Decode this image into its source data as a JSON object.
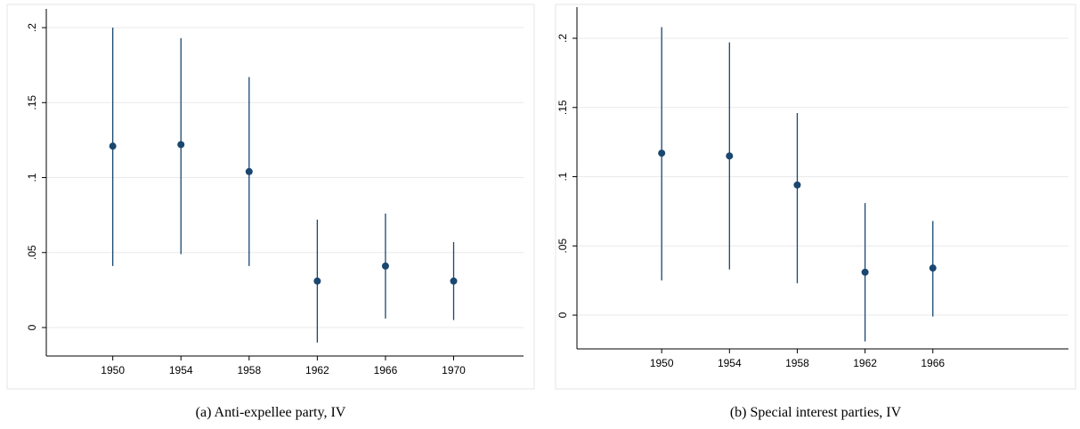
{
  "chart_data": [
    {
      "type": "errorbar",
      "caption": "(a)  Anti-expellee party, IV",
      "color": "#1a476f",
      "x": [
        1950,
        1954,
        1958,
        1962,
        1966,
        1970
      ],
      "values": [
        0.121,
        0.122,
        0.104,
        0.031,
        0.041,
        0.031
      ],
      "lower": [
        0.041,
        0.049,
        0.041,
        -0.01,
        0.006,
        0.005
      ],
      "upper": [
        0.2,
        0.193,
        0.167,
        0.072,
        0.076,
        0.057
      ],
      "xlim": [
        1946.1,
        1974.1
      ],
      "xticks": [
        1950,
        1954,
        1958,
        1962,
        1966,
        1970
      ],
      "ylim": [
        -0.019,
        0.2125
      ],
      "yticks": [
        0,
        {
          "value": 0.05,
          "label": ".05"
        },
        {
          "value": 0.1,
          "label": ".1"
        },
        {
          "value": 0.15,
          "label": ".15"
        },
        {
          "value": 0.2,
          "label": ".2"
        }
      ],
      "grid": true
    },
    {
      "type": "errorbar",
      "caption": "(b)  Special interest parties, IV",
      "color": "#1a476f",
      "x": [
        1950,
        1954,
        1958,
        1962,
        1966
      ],
      "values": [
        0.117,
        0.115,
        0.094,
        0.031,
        0.034
      ],
      "lower": [
        0.025,
        0.033,
        0.023,
        -0.019,
        -0.001
      ],
      "upper": [
        0.208,
        0.197,
        0.146,
        0.081,
        0.068
      ],
      "xlim": [
        1945,
        1974
      ],
      "xticks": [
        1950,
        1954,
        1958,
        1962,
        1966
      ],
      "ylim": [
        -0.0244,
        0.2225
      ],
      "yticks": [
        0,
        {
          "value": 0.05,
          "label": ".05"
        },
        {
          "value": 0.1,
          "label": ".1"
        },
        {
          "value": 0.15,
          "label": ".15"
        },
        {
          "value": 0.2,
          "label": ".2"
        }
      ],
      "grid": true
    }
  ]
}
